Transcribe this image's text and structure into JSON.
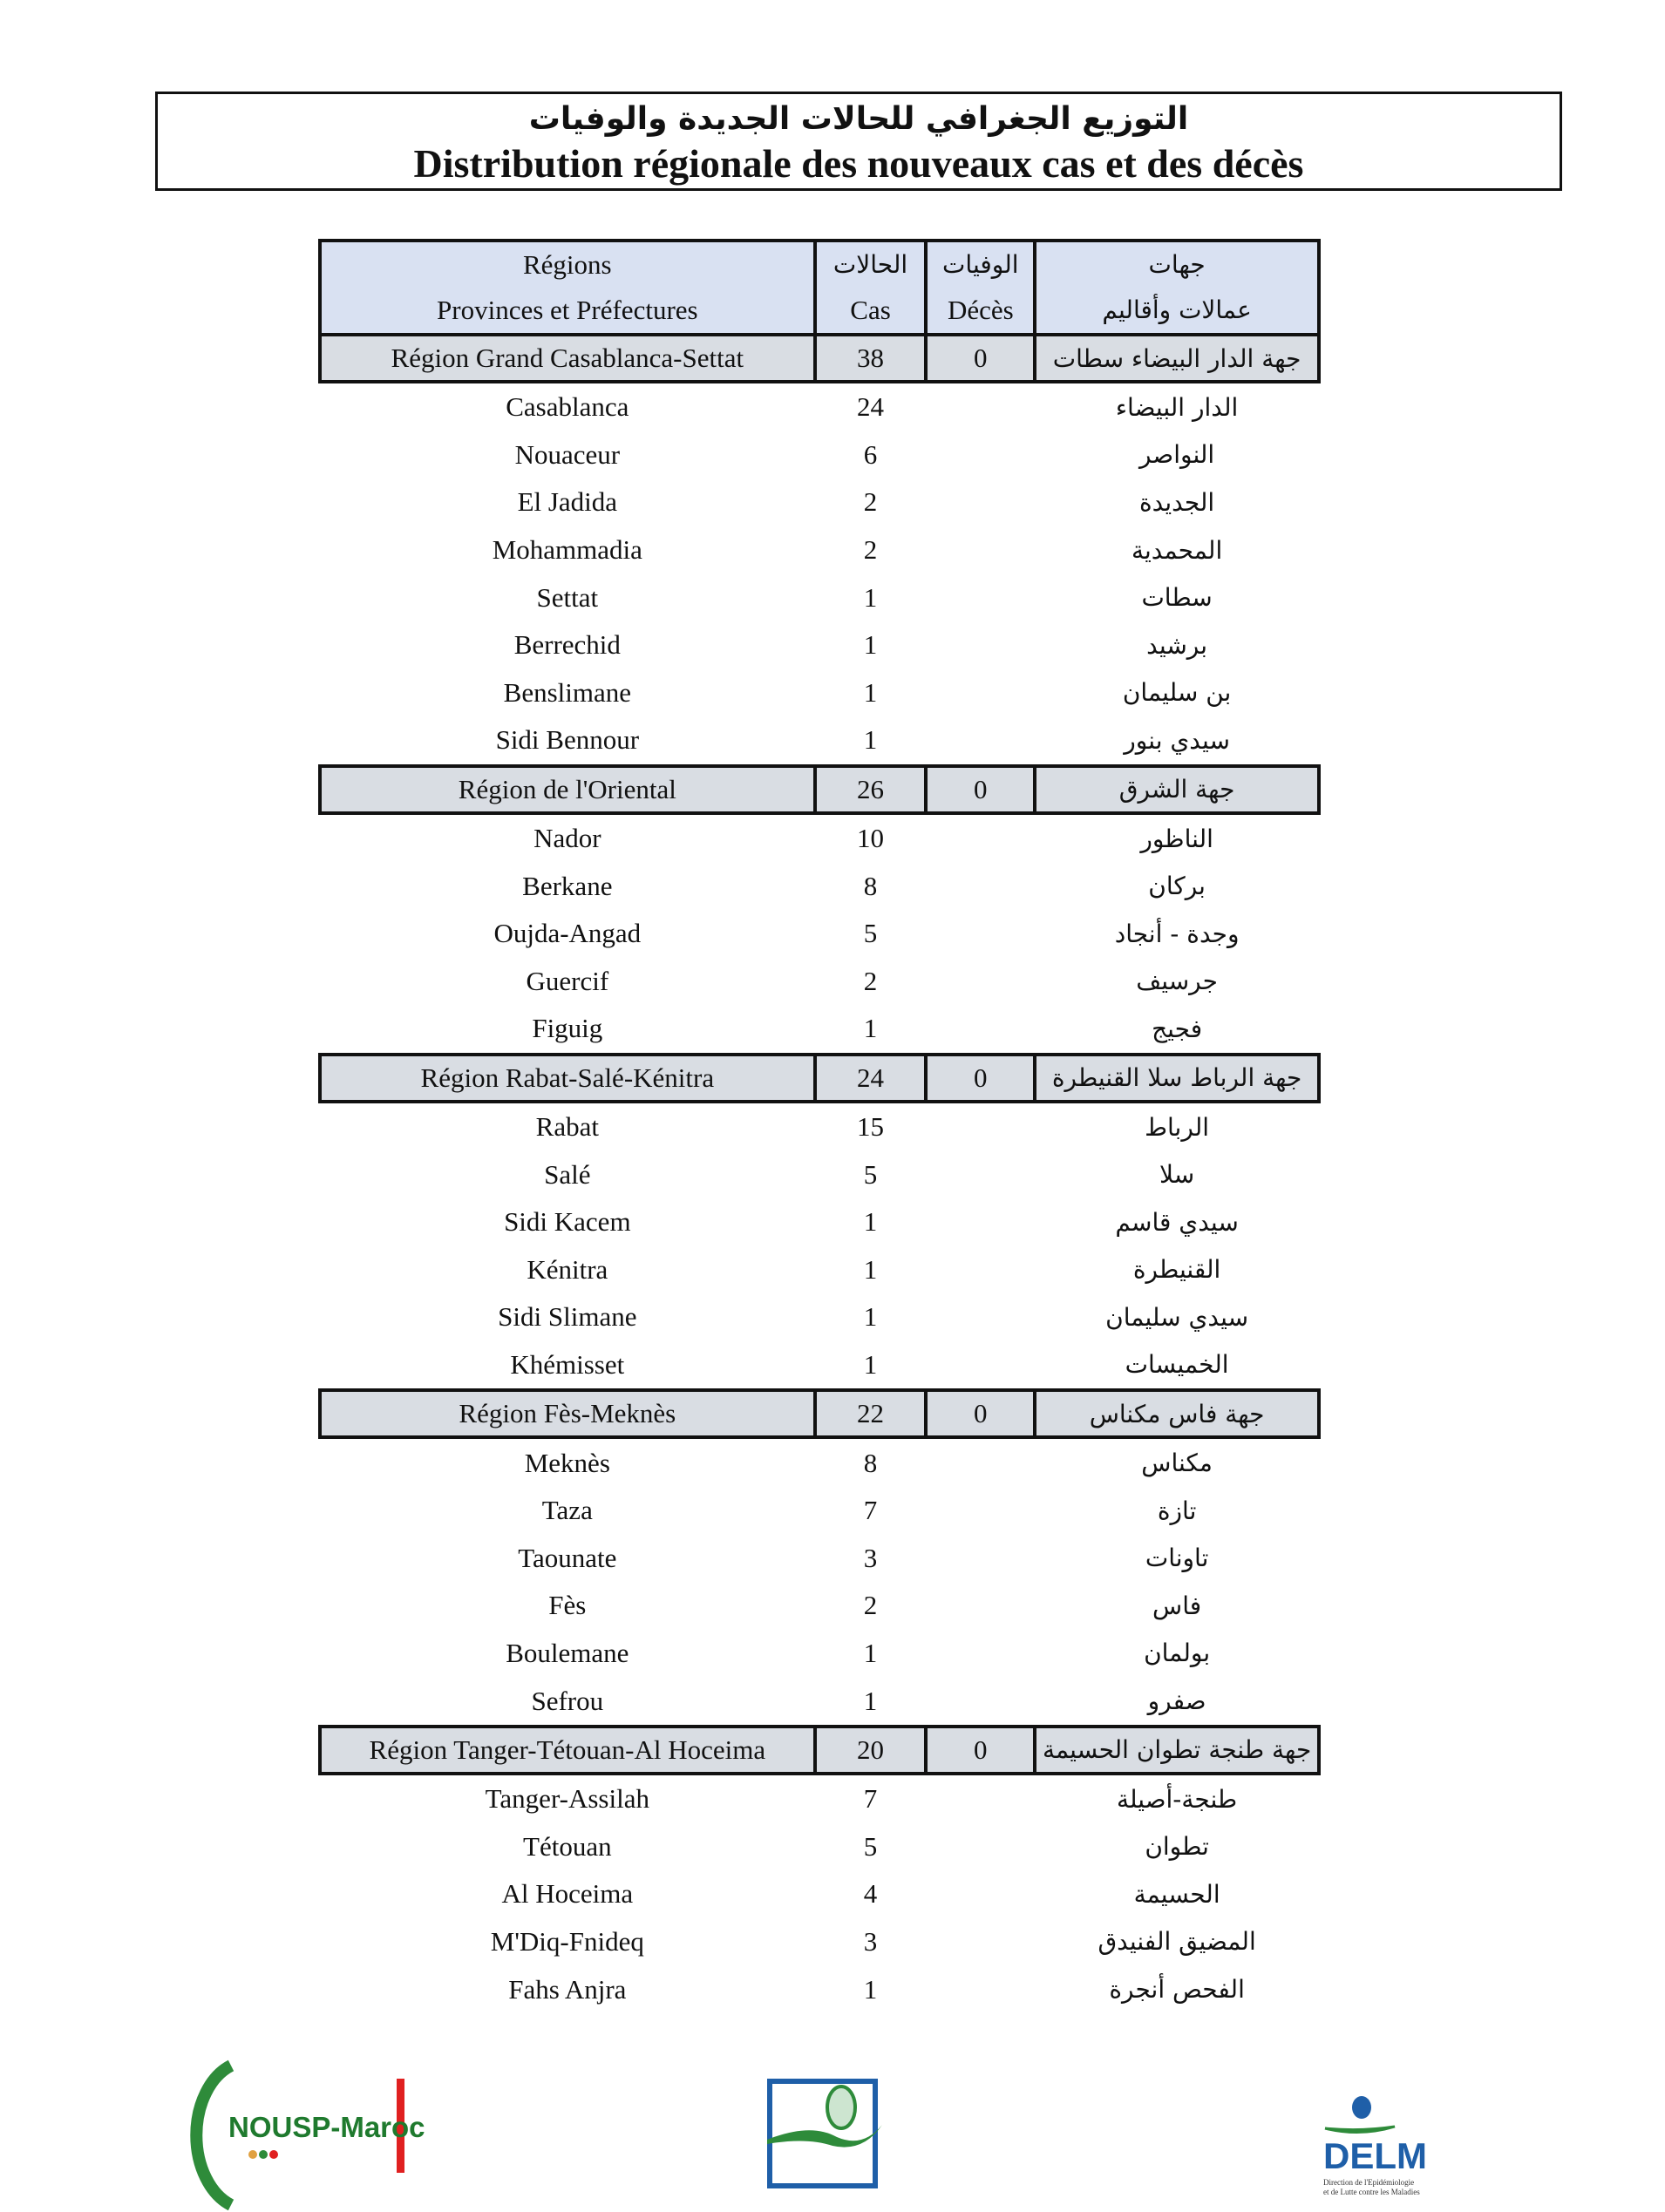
{
  "title": {
    "arabic": "التوزيع الجغرافي للحالات الجديدة والوفيات",
    "french": "Distribution régionale des nouveaux cas et des décès"
  },
  "header": {
    "regions_fr": "Régions",
    "provinces_fr": "Provinces et Préfectures",
    "cas_ar": "الحالات",
    "cas_fr": "Cas",
    "deces_ar": "الوفيات",
    "deces_fr": "Décès",
    "regions_ar": "جهات",
    "provinces_ar": "عمالات وأقاليم"
  },
  "regions": [
    {
      "name": "Région Grand Casablanca-Settat",
      "cas": "38",
      "deces": "0",
      "name_ar": "جهة الدار البيضاء سطات",
      "provinces": [
        {
          "name": "Casablanca",
          "cas": "24",
          "name_ar": "الدار البيضاء"
        },
        {
          "name": "Nouaceur",
          "cas": "6",
          "name_ar": "النواصر"
        },
        {
          "name": "El Jadida",
          "cas": "2",
          "name_ar": "الجديدة"
        },
        {
          "name": "Mohammadia",
          "cas": "2",
          "name_ar": "المحمدية"
        },
        {
          "name": "Settat",
          "cas": "1",
          "name_ar": "سطات"
        },
        {
          "name": "Berrechid",
          "cas": "1",
          "name_ar": "برشيد"
        },
        {
          "name": "Benslimane",
          "cas": "1",
          "name_ar": "بن سليمان"
        },
        {
          "name": "Sidi Bennour",
          "cas": "1",
          "name_ar": "سيدي بنور"
        }
      ]
    },
    {
      "name": "Région de l'Oriental",
      "cas": "26",
      "deces": "0",
      "name_ar": "جهة الشرق",
      "provinces": [
        {
          "name": "Nador",
          "cas": "10",
          "name_ar": "الناظور"
        },
        {
          "name": "Berkane",
          "cas": "8",
          "name_ar": "بركان"
        },
        {
          "name": "Oujda-Angad",
          "cas": "5",
          "name_ar": "وجدة - أنجاد"
        },
        {
          "name": "Guercif",
          "cas": "2",
          "name_ar": "جرسيف"
        },
        {
          "name": "Figuig",
          "cas": "1",
          "name_ar": "فجيج"
        }
      ]
    },
    {
      "name": "Région Rabat-Salé-Kénitra",
      "cas": "24",
      "deces": "0",
      "name_ar": "جهة الرباط سلا القنيطرة",
      "provinces": [
        {
          "name": "Rabat",
          "cas": "15",
          "name_ar": "الرباط"
        },
        {
          "name": "Salé",
          "cas": "5",
          "name_ar": "سلا"
        },
        {
          "name": "Sidi Kacem",
          "cas": "1",
          "name_ar": "سيدي قاسم"
        },
        {
          "name": "Kénitra",
          "cas": "1",
          "name_ar": "القنيطرة"
        },
        {
          "name": "Sidi Slimane",
          "cas": "1",
          "name_ar": "سيدي سليمان"
        },
        {
          "name": "Khémisset",
          "cas": "1",
          "name_ar": "الخميسات"
        }
      ]
    },
    {
      "name": "Région Fès-Meknès",
      "cas": "22",
      "deces": "0",
      "name_ar": "جهة فاس مكناس",
      "provinces": [
        {
          "name": "Meknès",
          "cas": "8",
          "name_ar": "مكناس"
        },
        {
          "name": "Taza",
          "cas": "7",
          "name_ar": "تازة"
        },
        {
          "name": "Taounate",
          "cas": "3",
          "name_ar": "تاونات"
        },
        {
          "name": "Fès",
          "cas": "2",
          "name_ar": "فاس"
        },
        {
          "name": "Boulemane",
          "cas": "1",
          "name_ar": "بولمان"
        },
        {
          "name": "Sefrou",
          "cas": "1",
          "name_ar": "صفرو"
        }
      ]
    },
    {
      "name": "Région Tanger-Tétouan-Al Hoceima",
      "cas": "20",
      "deces": "0",
      "name_ar": "جهة طنجة تطوان الحسيمة",
      "provinces": [
        {
          "name": "Tanger-Assilah",
          "cas": "7",
          "name_ar": "طنجة-أصيلة"
        },
        {
          "name": "Tétouan",
          "cas": "5",
          "name_ar": "تطوان"
        },
        {
          "name": "Al Hoceima",
          "cas": "4",
          "name_ar": "الحسيمة"
        },
        {
          "name": "M'Diq-Fnideq",
          "cas": "3",
          "name_ar": "المضيق الفنيدق"
        },
        {
          "name": "Fahs Anjra",
          "cas": "1",
          "name_ar": "الفحص أنجرة"
        }
      ]
    }
  ],
  "logos": {
    "left": "NOUSP-Maroc",
    "right": "DELM",
    "right_caption": "Direction de l'Epidémiologie et de Lutte contre les Maladies"
  },
  "colors": {
    "header_bg": "#d9e1f2",
    "region_bg": "#d9dde3",
    "logo_green": "#2e8b3a",
    "logo_blue": "#1f5fa8",
    "logo_red": "#e02020"
  }
}
